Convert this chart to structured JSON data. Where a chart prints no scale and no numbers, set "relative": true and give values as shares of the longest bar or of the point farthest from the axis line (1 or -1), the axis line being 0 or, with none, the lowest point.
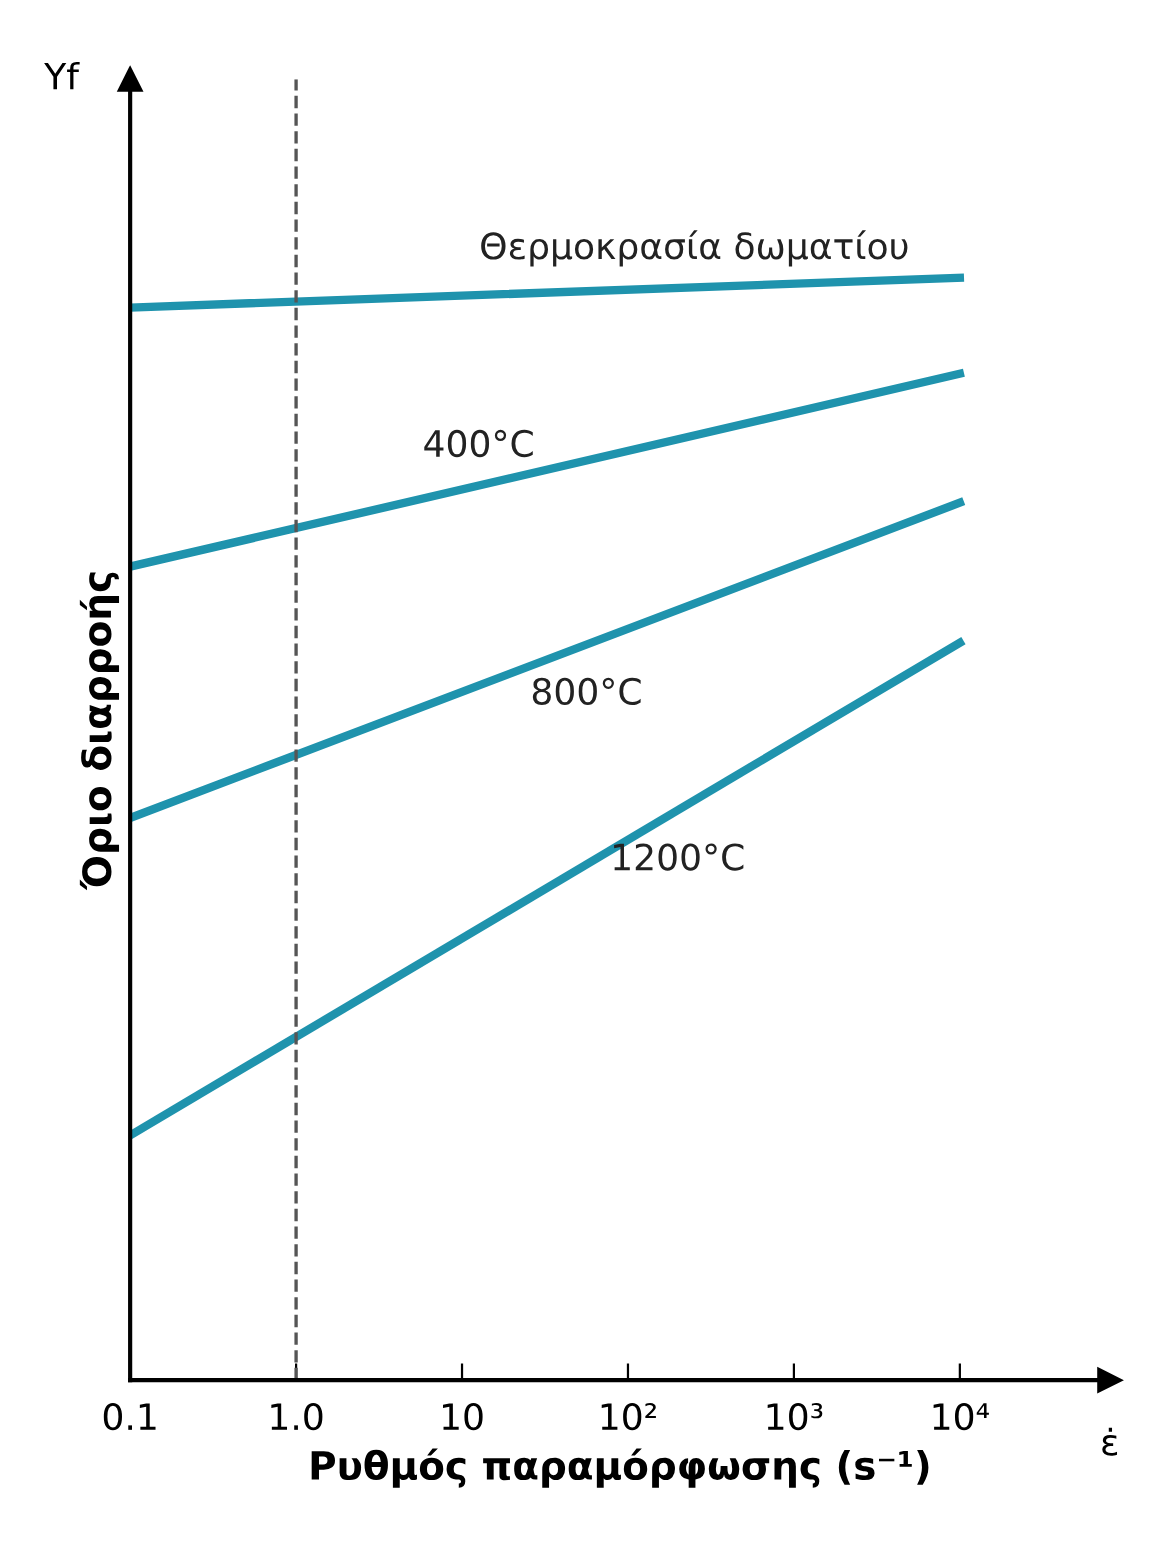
{
  "chart_data": {
    "type": "line",
    "xlabel": "Ρυθμός παραμόρφωσης (s⁻¹)",
    "ylabel": "Όριο διαρροής",
    "annotations": [
      "Yf",
      "ε̇"
    ],
    "log": "x",
    "relative": true,
    "grid": false,
    "legend": false,
    "marker": "none",
    "line_style": "solid",
    "xlim": [
      0.1,
      80000
    ],
    "x": [
      0.1,
      10000
    ],
    "xticks": [
      0.1,
      {
        "value": 1,
        "label": "1.0"
      },
      10,
      {
        "value": 100,
        "label": "10²"
      },
      {
        "value": 1000,
        "label": "10³"
      },
      {
        "value": 10000,
        "label": "10⁴"
      }
    ],
    "ref_lines": [
      {
        "axis": "x",
        "value": 1,
        "color": "#555555",
        "line_style": "dashed"
      }
    ],
    "series": [
      {
        "name": "Θερμοκρασία δωματίου",
        "color": "#1f93ad",
        "values": [
          0.973,
          1.0
        ]
      },
      {
        "name": "400°C",
        "color": "#1f93ad",
        "values": [
          0.738,
          0.913
        ]
      },
      {
        "name": "800°C",
        "color": "#1f93ad",
        "values": [
          0.51,
          0.796
        ]
      },
      {
        "name": "1200°C",
        "color": "#1f93ad",
        "values": [
          0.222,
          0.669
        ]
      }
    ]
  }
}
